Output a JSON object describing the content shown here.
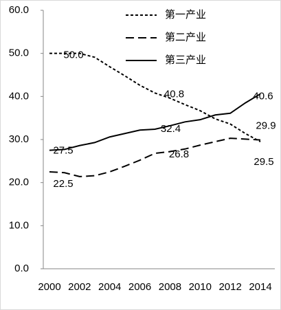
{
  "chart_data": {
    "type": "line",
    "categories": [
      "2000",
      null,
      "2002",
      null,
      "2004",
      null,
      "2006",
      null,
      "2008",
      null,
      "2010",
      null,
      "2012",
      null,
      "2014"
    ],
    "ylim": [
      0,
      60
    ],
    "yticks": [
      {
        "value": 0,
        "label": "0.0"
      },
      {
        "value": 10,
        "label": "10.0"
      },
      {
        "value": 20,
        "label": "20.0"
      },
      {
        "value": 30,
        "label": "30.0"
      },
      {
        "value": 40,
        "label": "40.0"
      },
      {
        "value": 50,
        "label": "50.0"
      },
      {
        "value": 60,
        "label": "60.0"
      }
    ],
    "grid": false,
    "legend": "top-right",
    "series": [
      {
        "name": "第一产业",
        "color": "#000000",
        "dash": "4,3",
        "values": [
          50.0,
          50.0,
          50.0,
          49.1,
          46.9,
          44.8,
          42.6,
          40.8,
          39.6,
          38.1,
          36.7,
          34.8,
          33.6,
          31.4,
          29.5
        ],
        "value_labels": [
          "50.0",
          null,
          null,
          null,
          null,
          null,
          null,
          "40.8",
          null,
          null,
          null,
          null,
          null,
          null,
          "29.5"
        ]
      },
      {
        "name": "第二产业",
        "color": "#000000",
        "dash": "12,6",
        "values": [
          22.5,
          22.3,
          21.4,
          21.6,
          22.5,
          23.8,
          25.2,
          26.8,
          27.2,
          27.8,
          28.7,
          29.5,
          30.3,
          30.1,
          29.9
        ],
        "value_labels": [
          "22.5",
          null,
          null,
          null,
          null,
          null,
          null,
          "26.8",
          null,
          null,
          null,
          null,
          null,
          null,
          "29.9"
        ]
      },
      {
        "name": "第三产业",
        "color": "#000000",
        "dash": "none",
        "values": [
          27.5,
          27.7,
          28.6,
          29.3,
          30.6,
          31.4,
          32.2,
          32.4,
          33.2,
          34.1,
          34.6,
          35.7,
          36.1,
          38.5,
          40.6
        ],
        "value_labels": [
          "27.5",
          null,
          null,
          null,
          null,
          null,
          null,
          "32.4",
          null,
          null,
          null,
          null,
          null,
          null,
          "40.6"
        ]
      }
    ]
  }
}
